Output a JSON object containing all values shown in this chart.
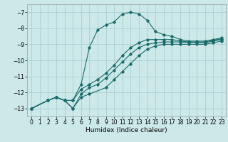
{
  "title": "",
  "xlabel": "Humidex (Indice chaleur)",
  "ylabel": "",
  "bg_color": "#cce8e8",
  "line_color": "#1a6b6b",
  "grid_color": "#aad0d0",
  "xlim": [
    -0.5,
    23.5
  ],
  "ylim": [
    -13.5,
    -6.5
  ],
  "xticks": [
    0,
    1,
    2,
    3,
    4,
    5,
    6,
    7,
    8,
    9,
    10,
    11,
    12,
    13,
    14,
    15,
    16,
    17,
    18,
    19,
    20,
    21,
    22,
    23
  ],
  "yticks": [
    -13,
    -12,
    -11,
    -10,
    -9,
    -8,
    -7
  ],
  "line1_x": [
    0,
    2,
    3,
    4,
    5,
    6,
    7,
    8,
    9,
    10,
    11,
    12,
    13,
    14,
    15,
    16,
    17,
    18,
    19,
    20,
    21,
    22,
    23
  ],
  "line1_y": [
    -13,
    -12.5,
    -12.3,
    -12.5,
    -12.5,
    -11.5,
    -9.2,
    -8.1,
    -7.8,
    -7.6,
    -7.1,
    -7.0,
    -7.1,
    -7.5,
    -8.2,
    -8.4,
    -8.5,
    -8.7,
    -8.8,
    -8.8,
    -8.8,
    -8.7,
    -8.6
  ],
  "line2_x": [
    0,
    2,
    3,
    4,
    5,
    6,
    7,
    8,
    9,
    10,
    11,
    12,
    13,
    14,
    15,
    16,
    17,
    18,
    19,
    20,
    21,
    22,
    23
  ],
  "line2_y": [
    -13,
    -12.5,
    -12.3,
    -12.5,
    -12.5,
    -11.8,
    -11.5,
    -11.2,
    -10.8,
    -10.3,
    -9.7,
    -9.2,
    -8.9,
    -8.7,
    -8.7,
    -8.7,
    -8.7,
    -8.8,
    -8.85,
    -8.85,
    -8.85,
    -8.75,
    -8.65
  ],
  "line3_x": [
    0,
    2,
    3,
    4,
    5,
    6,
    7,
    8,
    9,
    10,
    11,
    12,
    13,
    14,
    15,
    16,
    17,
    18,
    19,
    20,
    21,
    22,
    23
  ],
  "line3_y": [
    -13,
    -12.5,
    -12.3,
    -12.5,
    -13.0,
    -12.1,
    -11.7,
    -11.5,
    -11.1,
    -10.6,
    -10.1,
    -9.6,
    -9.2,
    -9.0,
    -8.9,
    -8.85,
    -8.85,
    -8.85,
    -8.9,
    -8.9,
    -8.9,
    -8.8,
    -8.7
  ],
  "line4_x": [
    0,
    2,
    3,
    4,
    5,
    6,
    7,
    9,
    10,
    11,
    12,
    13,
    14,
    15,
    16,
    17,
    18,
    19,
    20,
    21,
    22,
    23
  ],
  "line4_y": [
    -13,
    -12.5,
    -12.3,
    -12.5,
    -13.0,
    -12.3,
    -12.1,
    -11.7,
    -11.2,
    -10.7,
    -10.2,
    -9.7,
    -9.3,
    -9.1,
    -9.0,
    -9.0,
    -9.0,
    -9.0,
    -9.0,
    -9.0,
    -8.9,
    -8.8
  ]
}
